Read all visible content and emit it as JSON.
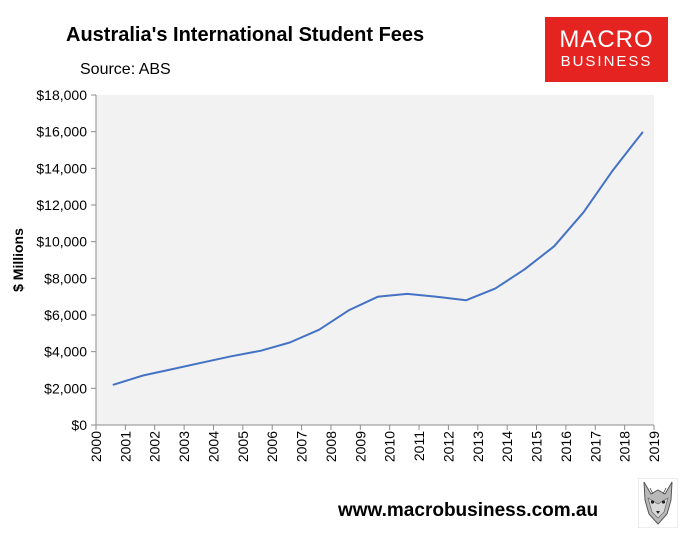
{
  "header": {
    "title": "Australia's International Student Fees",
    "source": "Source: ABS"
  },
  "logo": {
    "line1": "MACRO",
    "line2": "BUSINESS",
    "background": "#e52421"
  },
  "footer": {
    "website": "www.macrobusiness.com.au",
    "mascot_icon": "wolf-icon"
  },
  "chart_data": {
    "type": "line",
    "ylabel": "$ Millions",
    "xlabel": "",
    "ylim": [
      0,
      18000
    ],
    "xlim": [
      2000,
      2019
    ],
    "yticks": [
      0,
      2000,
      4000,
      6000,
      8000,
      10000,
      12000,
      14000,
      16000,
      18000
    ],
    "ytick_labels": [
      "$0",
      "$2,000",
      "$4,000",
      "$6,000",
      "$8,000",
      "$10,000",
      "$12,000",
      "$14,000",
      "$16,000",
      "$18,000"
    ],
    "xticks": [
      2000,
      2001,
      2002,
      2003,
      2004,
      2005,
      2006,
      2007,
      2008,
      2009,
      2010,
      2011,
      2012,
      2013,
      2014,
      2015,
      2016,
      2017,
      2018,
      2019
    ],
    "xtick_labels": [
      "2000",
      "2001",
      "2002",
      "2003",
      "2004",
      "2005",
      "2006",
      "2007",
      "2008",
      "2009",
      "2010",
      "2011",
      "2012",
      "2013",
      "2014",
      "2015",
      "2016",
      "2017",
      "2018",
      "2019"
    ],
    "grid": false,
    "plot_background": "#f2f2f2",
    "line_color": "#4472c4",
    "series": [
      {
        "x": [
          2000.6,
          2001.6,
          2002.6,
          2003.6,
          2004.6,
          2005.6,
          2006.6,
          2007.6,
          2008.6,
          2009.6,
          2010.6,
          2011.6,
          2012.6,
          2013.6,
          2014.6,
          2015.6,
          2016.6,
          2017.6,
          2018.6
        ],
        "values": [
          2200,
          2700,
          3050,
          3400,
          3750,
          4050,
          4500,
          5200,
          6250,
          7000,
          7150,
          7000,
          6800,
          7450,
          8500,
          9750,
          11600,
          13900,
          15950
        ]
      }
    ]
  }
}
